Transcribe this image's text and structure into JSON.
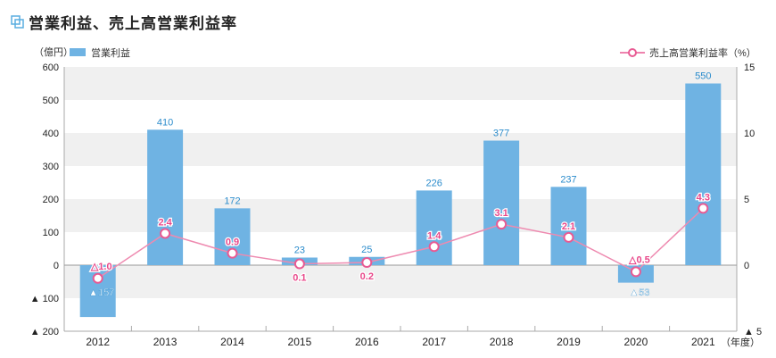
{
  "title": "営業利益、売上高営業利益率",
  "chart_data": {
    "type": "bar+line",
    "categories": [
      "2012",
      "2013",
      "2014",
      "2015",
      "2016",
      "2017",
      "2018",
      "2019",
      "2020",
      "2021"
    ],
    "series": [
      {
        "name": "営業利益",
        "axis": "left",
        "type": "bar",
        "values": [
          -157,
          410,
          172,
          23,
          25,
          226,
          377,
          237,
          -53,
          550
        ],
        "labels": [
          "▲157",
          "410",
          "172",
          "23",
          "25",
          "226",
          "377",
          "237",
          "▲53",
          "550"
        ],
        "color": "#6fb3e3"
      },
      {
        "name": "売上高営業利益率",
        "axis": "right",
        "type": "line",
        "values": [
          -1.0,
          2.4,
          0.9,
          0.1,
          0.2,
          1.4,
          3.1,
          2.1,
          -0.5,
          4.3
        ],
        "labels": [
          "△1.0",
          "2.4",
          "0.9",
          "0.1",
          "0.2",
          "1.4",
          "3.1",
          "2.1",
          "△0.5",
          "4.3"
        ],
        "color": "#e85a93"
      }
    ],
    "left_unit": "（億円）",
    "right_unit": "（%）",
    "x_unit": "（年度）",
    "ylim_left": [
      -200,
      600
    ],
    "yticks_left": [
      600,
      500,
      400,
      300,
      200,
      100,
      0,
      -100,
      -200
    ],
    "yticklabels_left": [
      "600",
      "500",
      "400",
      "300",
      "200",
      "100",
      "0",
      "▲ 100",
      "▲ 200"
    ],
    "ylim_right": [
      -5,
      15
    ],
    "yticks_right": [
      15,
      10,
      5,
      0,
      -5
    ],
    "yticklabels_right": [
      "15",
      "10",
      "5",
      "0",
      "▲ 5"
    ],
    "legend_placement": "top"
  }
}
